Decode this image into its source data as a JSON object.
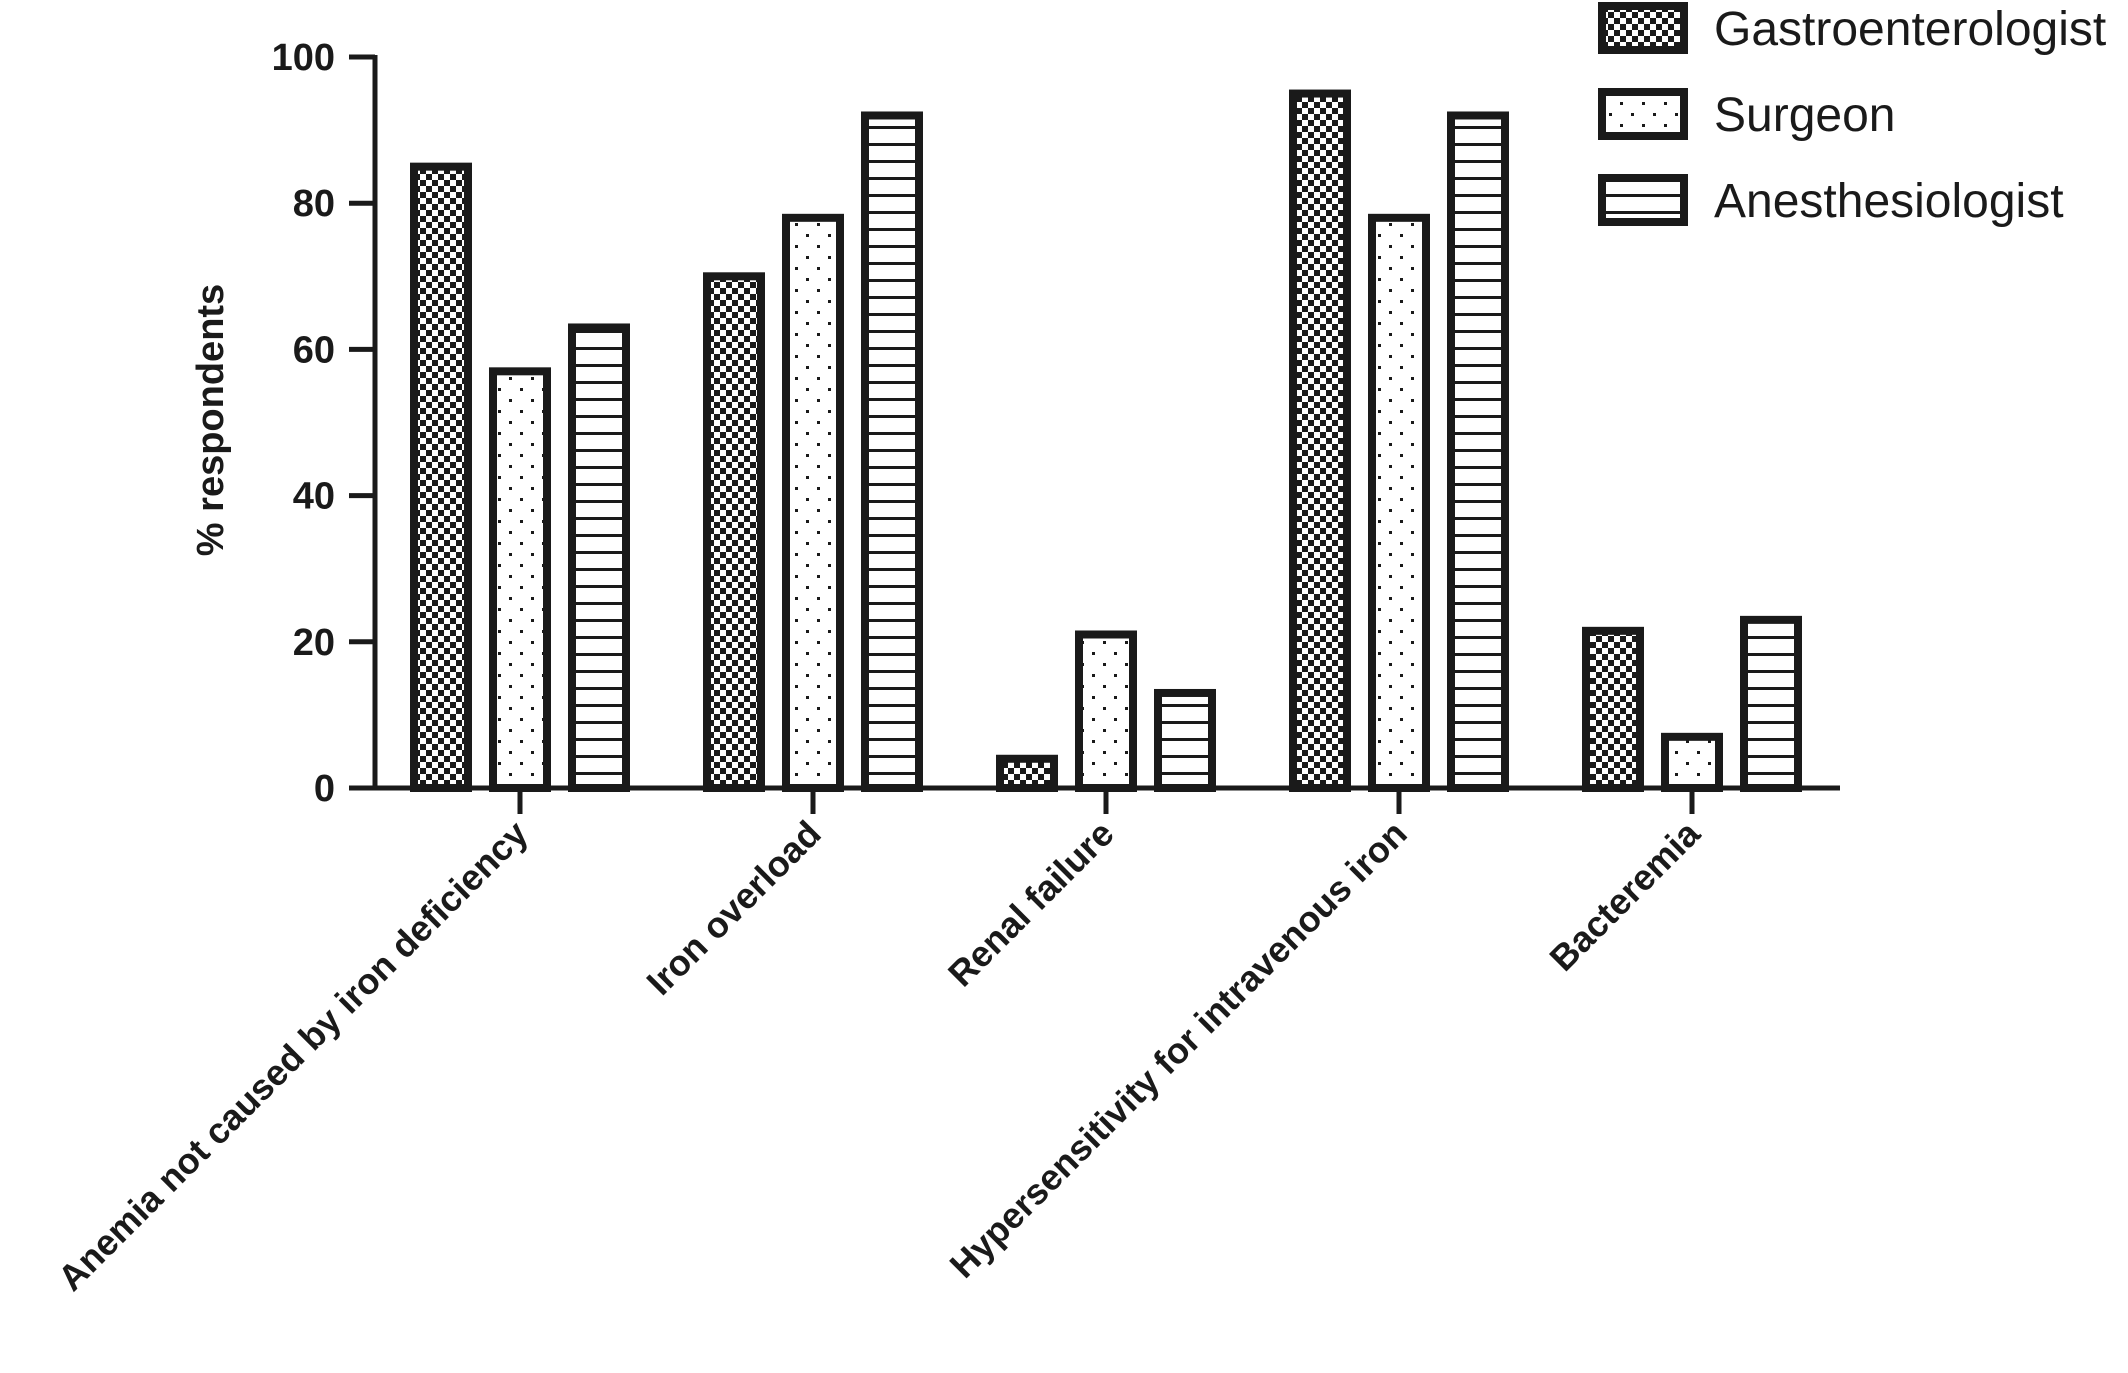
{
  "chart_data": {
    "type": "bar",
    "title": "",
    "xlabel": "",
    "ylabel": "% respondents",
    "ylim": [
      0,
      100
    ],
    "yticks": [
      0,
      20,
      40,
      60,
      80,
      100
    ],
    "grid": false,
    "legend_position": "top-right",
    "categories": [
      "Anemia not caused by iron deficiency",
      "Iron overload",
      "Renal failure",
      "Hypersensitivity for intravenous iron",
      "Bacteremia"
    ],
    "series": [
      {
        "name": "Gastroenterologist",
        "pattern": "checkered",
        "values": [
          85,
          70,
          4,
          95,
          21.5
        ]
      },
      {
        "name": "Surgeon",
        "pattern": "dotted",
        "values": [
          57,
          78,
          21,
          78,
          7
        ]
      },
      {
        "name": "Anesthesiologist",
        "pattern": "horizontal-lines",
        "values": [
          63,
          92,
          13,
          92,
          23
        ]
      }
    ],
    "colors": {
      "stroke": "#1a1a1a",
      "fill": "#ffffff"
    }
  }
}
